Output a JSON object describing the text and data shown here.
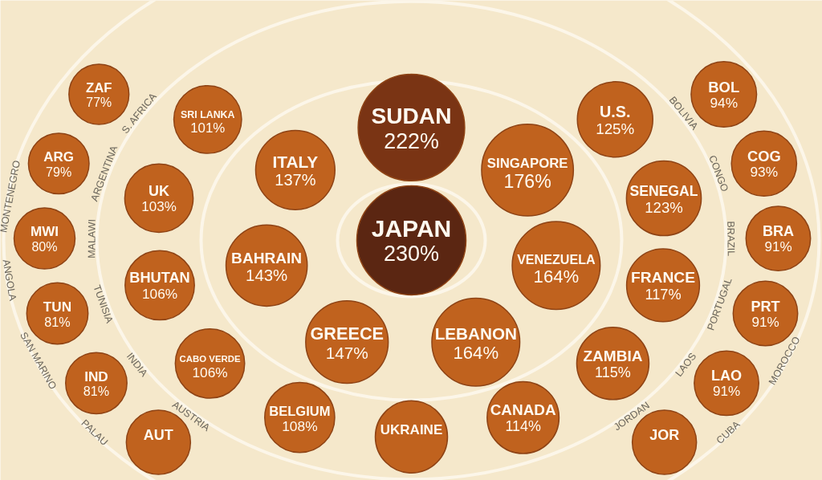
{
  "chart_data": {
    "type": "other",
    "categories": [
      "JAPAN",
      "SUDAN",
      "SINGAPORE",
      "VENEZUELA",
      "LEBANON",
      "GREECE",
      "BAHRAIN",
      "ITALY",
      "U.S.",
      "SENEGAL",
      "FRANCE",
      "ZAMBIA",
      "CANADA",
      "UKRAINE",
      "BELGIUM",
      "CABO VERDE",
      "BHUTAN",
      "UK",
      "SRI LANKA",
      "BOL",
      "COG",
      "BRA",
      "PRT",
      "LAO",
      "JOR",
      "AUT",
      "IND",
      "TUN",
      "MWI",
      "ARG",
      "ZAF"
    ],
    "values": [
      230,
      222,
      176,
      164,
      164,
      147,
      143,
      137,
      125,
      123,
      117,
      115,
      114,
      null,
      108,
      106,
      106,
      103,
      101,
      94,
      93,
      91,
      91,
      91,
      null,
      null,
      81,
      81,
      80,
      79,
      77
    ],
    "value_labels": [
      "230%",
      "222%",
      "176%",
      "164%",
      "164%",
      "147%",
      "143%",
      "137%",
      "125%",
      "123%",
      "117%",
      "115%",
      "114%",
      null,
      "108%",
      "106%",
      "106%",
      "103%",
      "101%",
      "94%",
      "93%",
      "91%",
      "91%",
      "91%",
      null,
      null,
      "81%",
      "81%",
      "80%",
      "79%",
      "77%"
    ],
    "colors": [
      "#5b2612",
      "#7a3414",
      "#c0621e",
      "#c0621e",
      "#c0621e",
      "#c0621e",
      "#c0621e",
      "#c0621e",
      "#c0621e",
      "#c0621e",
      "#c0621e",
      "#c0621e",
      "#c0621e",
      "#c0621e",
      "#c0621e",
      "#c0621e",
      "#c0621e",
      "#c0621e",
      "#c0621e",
      "#c0621e",
      "#c0621e",
      "#c0621e",
      "#c0621e",
      "#c0621e",
      "#c0621e",
      "#c0621e",
      "#c0621e",
      "#c0621e",
      "#c0621e",
      "#c0621e",
      "#c0621e"
    ],
    "annotations": [
      "BOLIVIA",
      "CONGO",
      "BRAZIL",
      "PORTUGAL",
      "LAOS",
      "JORDAN",
      "AUSTRIA",
      "INDIA",
      "TUNISIA",
      "MALAWI",
      "ARGENTINA",
      "S. AFRICA",
      "MOROCCO",
      "CUBA",
      "PALAU",
      "SAN MARINO",
      "ANGOLA",
      "MONTENEGRO"
    ]
  }
}
